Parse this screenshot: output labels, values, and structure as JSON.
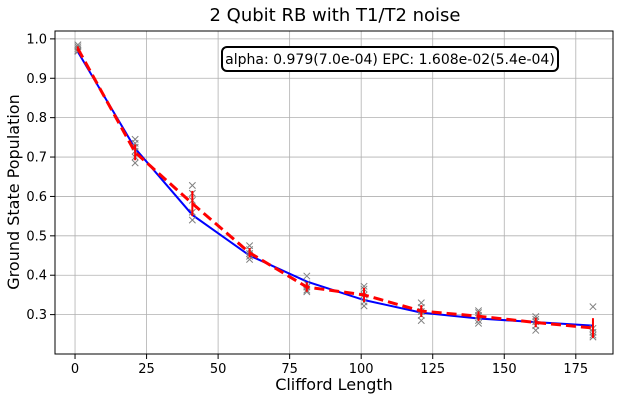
{
  "chart_data": {
    "type": "scatter",
    "title": "2 Qubit RB with T1/T2 noise",
    "xlabel": "Clifford Length",
    "ylabel": "Ground State Population",
    "annotation": "alpha: 0.979(7.0e-04) EPC: 1.608e-02(5.4e-04)",
    "xlim": [
      -7,
      188
    ],
    "ylim": [
      0.2,
      1.02
    ],
    "xticks": [
      0,
      25,
      50,
      75,
      100,
      125,
      150,
      175
    ],
    "yticks": [
      0.3,
      0.4,
      0.5,
      0.6,
      0.7,
      0.8,
      0.9,
      1.0
    ],
    "ytick_labels": [
      "0.3",
      "0.4",
      "0.5",
      "0.6",
      "0.7",
      "0.8",
      "0.9",
      "1.0"
    ],
    "grid": true,
    "colors": {
      "samples": "#808080",
      "mean": "#ff0000",
      "fit": "#0000ff"
    },
    "samples": [
      {
        "x": 1,
        "y": [
          0.985,
          0.98,
          0.975,
          0.97,
          0.968
        ]
      },
      {
        "x": 21,
        "y": [
          0.745,
          0.735,
          0.725,
          0.715,
          0.7,
          0.685
        ]
      },
      {
        "x": 41,
        "y": [
          0.628,
          0.608,
          0.59,
          0.56,
          0.54
        ]
      },
      {
        "x": 61,
        "y": [
          0.475,
          0.465,
          0.455,
          0.448,
          0.44
        ]
      },
      {
        "x": 81,
        "y": [
          0.398,
          0.378,
          0.37,
          0.362,
          0.358
        ]
      },
      {
        "x": 101,
        "y": [
          0.372,
          0.365,
          0.35,
          0.332,
          0.322
        ]
      },
      {
        "x": 121,
        "y": [
          0.33,
          0.318,
          0.308,
          0.298,
          0.285
        ]
      },
      {
        "x": 141,
        "y": [
          0.31,
          0.305,
          0.298,
          0.285,
          0.278
        ]
      },
      {
        "x": 161,
        "y": [
          0.295,
          0.288,
          0.282,
          0.272,
          0.26
        ]
      },
      {
        "x": 181,
        "y": [
          0.32,
          0.265,
          0.255,
          0.248,
          0.243
        ]
      }
    ],
    "mean": {
      "x": [
        1,
        21,
        41,
        61,
        81,
        101,
        121,
        141,
        161,
        181
      ],
      "y": [
        0.975,
        0.712,
        0.582,
        0.457,
        0.37,
        0.35,
        0.309,
        0.296,
        0.28,
        0.266
      ],
      "err": [
        0.006,
        0.02,
        0.032,
        0.012,
        0.012,
        0.018,
        0.015,
        0.012,
        0.012,
        0.025
      ]
    },
    "fit": {
      "x": [
        1,
        21,
        41,
        61,
        81,
        101,
        121,
        141,
        161,
        181
      ],
      "y": [
        0.967,
        0.722,
        0.553,
        0.45,
        0.384,
        0.337,
        0.305,
        0.29,
        0.281,
        0.272
      ]
    }
  }
}
